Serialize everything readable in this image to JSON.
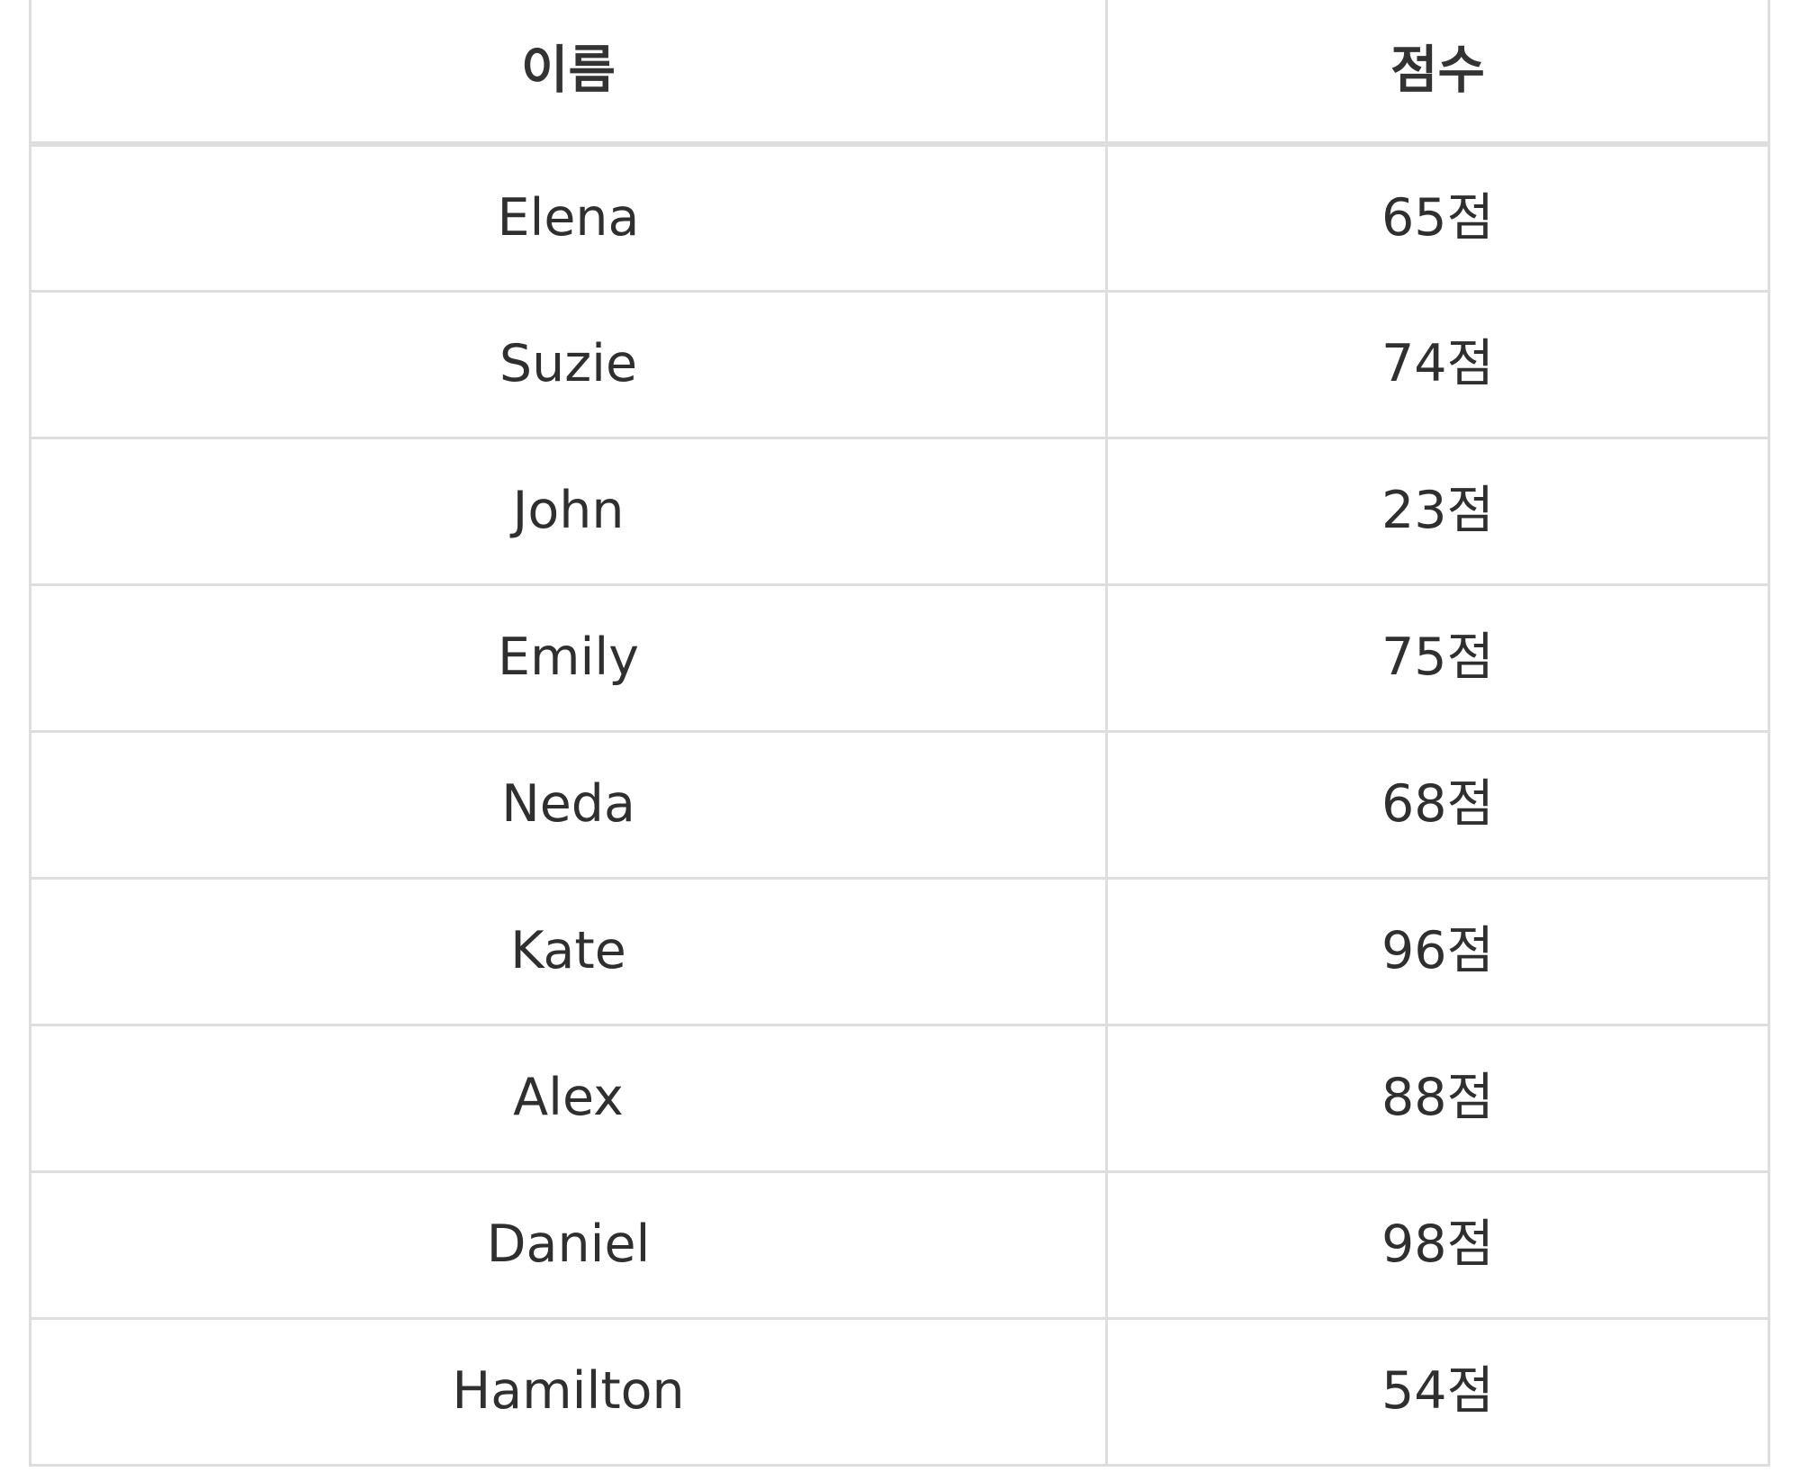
{
  "table": {
    "headers": [
      "이름",
      "점수"
    ],
    "rows": [
      {
        "name": "Elena",
        "score": "65점"
      },
      {
        "name": "Suzie",
        "score": "74점"
      },
      {
        "name": "John",
        "score": "23점"
      },
      {
        "name": "Emily",
        "score": "75점"
      },
      {
        "name": "Neda",
        "score": "68점"
      },
      {
        "name": "Kate",
        "score": "96점"
      },
      {
        "name": "Alex",
        "score": "88점"
      },
      {
        "name": "Daniel",
        "score": "98점"
      },
      {
        "name": "Hamilton",
        "score": "54점"
      }
    ]
  },
  "colors": {
    "border": "#dedede",
    "text": "#333333",
    "background": "#ffffff"
  }
}
